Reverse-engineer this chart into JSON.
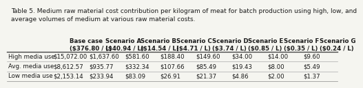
{
  "title": "Table 5. Medium raw material cost contribution per kilogram of meat for batch production using high, low, and\naverage volumes of medium at various raw material costs.",
  "col_headers": [
    "",
    "Base case\n($376.80 / L)",
    "Scenario A\n($40.94 / L)",
    "Scenario B\n($14.54 / L)",
    "Scenario C\n($4.71 / L)",
    "Scenario D\n($3.74 / L)",
    "Scenario E\n($0.85 / L)",
    "Scenario F\n($0.35 / L)",
    "Scenario G\n($0.24 / L)"
  ],
  "row_labels": [
    "High media use",
    "Avg. media use",
    "Low media use"
  ],
  "data": [
    [
      "$15,072.00",
      "$1,637.60",
      "$581.60",
      "$188.40",
      "$149.60",
      "$34.00",
      "$14.00",
      "$9.60"
    ],
    [
      "$8,612.57",
      "$935.77",
      "$332.34",
      "$107.66",
      "$85.49",
      "$19.43",
      "$8.00",
      "$5.49"
    ],
    [
      "$2,153.14",
      "$233.94",
      "$83.09",
      "$26.91",
      "$21.37",
      "$4.86",
      "$2.00",
      "$1.37"
    ]
  ],
  "title_fontsize": 6.5,
  "cell_fontsize": 6.2,
  "header_fontsize": 6.2,
  "background_color": "#f5f5f0",
  "text_color": "#1a1a1a"
}
